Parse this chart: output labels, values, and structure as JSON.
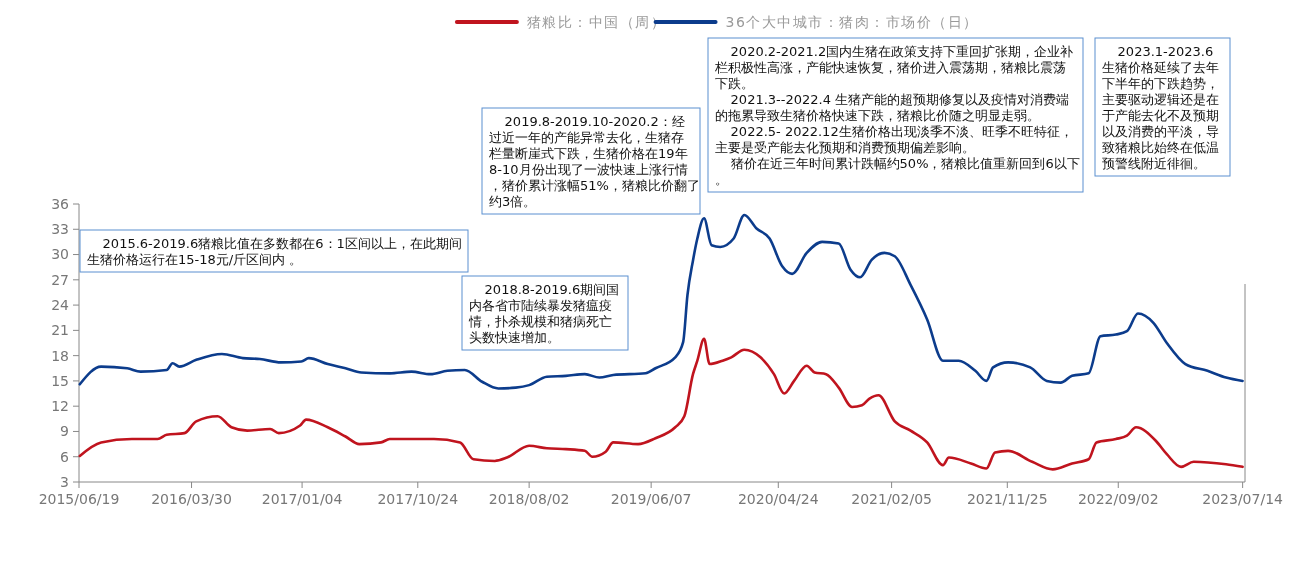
{
  "chart_data": {
    "type": "line",
    "legend": "top",
    "grid": false,
    "marker": "none",
    "line_style": "solid",
    "xlim": [
      "2015-06-19",
      "2023-07-20"
    ],
    "xticks": [
      {
        "value": "2015-06-19",
        "label": "2015/06/19"
      },
      {
        "value": "2016-03-30",
        "label": "2016/03/30"
      },
      {
        "value": "2017-01-04",
        "label": "2017/01/04"
      },
      {
        "value": "2017-10-24",
        "label": "2017/10/24"
      },
      {
        "value": "2018-08-02",
        "label": "2018/08/02"
      },
      {
        "value": "2019-06-07",
        "label": "2019/06/07"
      },
      {
        "value": "2020-04-24",
        "label": "2020/04/24"
      },
      {
        "value": "2021-02-05",
        "label": "2021/02/05"
      },
      {
        "value": "2021-11-25",
        "label": "2021/11/25"
      },
      {
        "value": "2022-09-02",
        "label": "2022/09/02"
      },
      {
        "value": "2023-07-14",
        "label": "2023/07/14"
      }
    ],
    "ylim": [
      3,
      36
    ],
    "yticks": [
      3,
      6,
      9,
      12,
      15,
      18,
      21,
      24,
      27,
      30,
      33,
      36
    ],
    "series": [
      {
        "name": "猪粮比：中国（周）",
        "color": "#c0141e",
        "x": [
          "2015-06-21",
          "2015-08-14",
          "2015-10-31",
          "2016-01-04",
          "2016-01-27",
          "2016-03-12",
          "2016-04-11",
          "2016-06-04",
          "2016-07-09",
          "2016-08-18",
          "2016-10-15",
          "2016-11-06",
          "2016-12-30",
          "2017-01-14",
          "2017-03-10",
          "2017-04-24",
          "2017-05-29",
          "2017-07-23",
          "2017-08-14",
          "2017-10-08",
          "2017-12-04",
          "2018-02-08",
          "2018-03-14",
          "2018-05-07",
          "2018-06-07",
          "2018-08-02",
          "2018-09-16",
          "2018-11-03",
          "2018-12-21",
          "2019-01-09",
          "2019-02-12",
          "2019-03-03",
          "2019-05-05",
          "2019-06-18",
          "2019-08-07",
          "2019-08-30",
          "2019-09-21",
          "2019-10-02",
          "2019-10-19",
          "2019-11-02",
          "2019-12-05",
          "2019-12-27",
          "2020-01-29",
          "2020-03-10",
          "2020-04-13",
          "2020-05-09",
          "2020-06-03",
          "2020-07-05",
          "2020-07-25",
          "2020-08-23",
          "2020-09-24",
          "2020-10-28",
          "2020-11-22",
          "2020-12-11",
          "2021-01-03",
          "2021-02-13",
          "2021-03-25",
          "2021-05-06",
          "2021-06-15",
          "2021-06-30",
          "2021-08-25",
          "2021-10-03",
          "2021-10-25",
          "2021-11-27",
          "2022-01-27",
          "2022-03-20",
          "2022-05-08",
          "2022-06-19",
          "2022-07-09",
          "2022-08-27",
          "2022-09-24",
          "2022-10-17",
          "2022-12-06",
          "2023-01-03",
          "2023-02-08",
          "2023-03-12",
          "2023-06-02",
          "2023-07-14"
        ],
        "values": [
          6.1,
          7.7,
          8.1,
          8.1,
          8.6,
          8.8,
          10.2,
          10.8,
          9.5,
          9.1,
          9.3,
          8.8,
          9.7,
          10.4,
          9.5,
          8.4,
          7.5,
          7.7,
          8.1,
          8.1,
          8.1,
          7.7,
          5.7,
          5.5,
          5.9,
          7.3,
          7.0,
          6.9,
          6.7,
          6.0,
          6.6,
          7.7,
          7.5,
          8.2,
          9.5,
          10.8,
          15.8,
          17.4,
          20.0,
          17.0,
          17.4,
          17.8,
          18.7,
          17.8,
          15.8,
          13.5,
          15.0,
          16.8,
          16.0,
          15.8,
          14.2,
          11.9,
          12.1,
          12.9,
          13.3,
          10.2,
          9.1,
          7.7,
          5.0,
          5.9,
          5.2,
          4.6,
          6.5,
          6.7,
          5.4,
          4.5,
          5.2,
          5.7,
          7.7,
          8.1,
          8.5,
          9.5,
          7.9,
          6.3,
          4.8,
          5.4,
          5.1,
          4.8
        ]
      },
      {
        "name": "36个大中城市：猪肉：市场价（日）",
        "color": "#0c3c8c",
        "x": [
          "2015-06-21",
          "2015-08-14",
          "2015-10-19",
          "2015-11-22",
          "2016-01-27",
          "2016-02-11",
          "2016-02-28",
          "2016-04-11",
          "2016-06-15",
          "2016-08-07",
          "2016-09-19",
          "2016-11-11",
          "2017-01-02",
          "2017-01-21",
          "2017-03-10",
          "2017-04-24",
          "2017-06-03",
          "2017-08-14",
          "2017-10-08",
          "2017-11-25",
          "2018-01-07",
          "2018-02-20",
          "2018-04-05",
          "2018-05-16",
          "2018-06-29",
          "2018-08-02",
          "2018-09-16",
          "2018-11-03",
          "2018-12-21",
          "2019-01-27",
          "2019-03-03",
          "2019-05-24",
          "2019-06-18",
          "2019-08-07",
          "2019-08-27",
          "2019-09-07",
          "2019-09-21",
          "2019-10-02",
          "2019-10-19",
          "2019-11-07",
          "2019-11-29",
          "2020-01-02",
          "2020-01-29",
          "2020-02-29",
          "2020-04-02",
          "2020-05-04",
          "2020-05-29",
          "2020-07-05",
          "2020-08-13",
          "2020-09-24",
          "2020-10-24",
          "2020-11-17",
          "2020-12-17",
          "2021-01-18",
          "2021-02-13",
          "2021-03-25",
          "2021-05-06",
          "2021-06-15",
          "2021-07-25",
          "2021-09-05",
          "2021-10-03",
          "2021-10-20",
          "2021-11-27",
          "2022-01-22",
          "2022-03-05",
          "2022-04-09",
          "2022-05-08",
          "2022-06-19",
          "2022-07-19",
          "2022-08-27",
          "2022-09-24",
          "2022-10-22",
          "2022-11-30",
          "2023-01-03",
          "2023-02-19",
          "2023-04-16",
          "2023-06-02",
          "2023-07-14"
        ],
        "values": [
          14.6,
          16.7,
          16.5,
          16.1,
          16.3,
          17.1,
          16.7,
          17.5,
          18.2,
          17.7,
          17.6,
          17.2,
          17.3,
          17.7,
          17.0,
          16.5,
          16.0,
          15.9,
          16.1,
          15.8,
          16.2,
          16.3,
          14.9,
          14.1,
          14.2,
          14.5,
          15.5,
          15.6,
          15.8,
          15.4,
          15.7,
          15.9,
          16.5,
          17.8,
          19.6,
          25.2,
          29.3,
          31.9,
          34.3,
          31.1,
          30.9,
          31.9,
          34.7,
          33.1,
          31.9,
          28.6,
          27.7,
          30.2,
          31.5,
          31.3,
          28.2,
          27.3,
          29.4,
          30.2,
          29.8,
          26.4,
          22.3,
          17.4,
          17.4,
          16.2,
          15.0,
          16.6,
          17.2,
          16.6,
          15.0,
          14.8,
          15.6,
          15.9,
          20.3,
          20.5,
          20.9,
          23.0,
          21.9,
          19.5,
          17.0,
          16.2,
          15.4,
          15.0
        ]
      }
    ],
    "annotations": [
      "2015.6-2019.6猪粮比值在多数都在6：1区间以上，在此期间生猪价格运行在15-18元/斤区间内 。",
      "2018.8-2019.6期间国内各省市陆续暴发猪瘟疫情，扑杀规模和猪病死亡头数快速增加。",
      "2019.8-2019.10-2020.2：经过近一年的产能异常去化，生猪存栏量断崖式下跌，生猪价格在19年8-10月份出现了一波快速上涨行情，猪价累计涨幅51%，猪粮比价翻了约3倍。",
      "2020.2-2021.2国内生猪在政策支持下重回扩张期，企业补栏积极性高涨，产能快速恢复，猪价进入震荡期，猪粮比震荡下跌。",
      "2021.3--2022.4 生猪产能的超预期修复以及疫情对消费端的拖累导致生猪价格快速下跌，猪粮比价随之明显走弱。",
      "2022.5- 2022.12生猪价格出现淡季不淡、旺季不旺特征，主要是受产能去化预期和消费预期偏差影响。",
      "猪价在近三年时间累计跌幅约50%，猪粮比值重新回到6以下。",
      "2023.1-2023.6生猪价格延续了去年下半年的下跌趋势，主要驱动逻辑还是在于产能去化不及预期以及消费的平淡，导致猪粮比始终在低温预警线附近徘徊。"
    ]
  }
}
